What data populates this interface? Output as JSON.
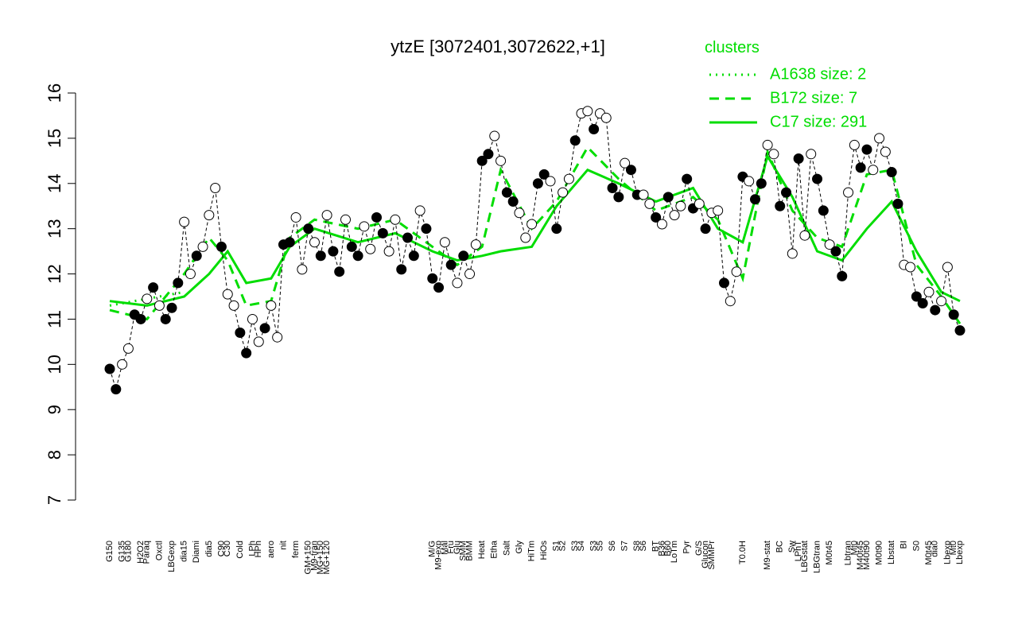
{
  "chart_data": {
    "type": "line",
    "title": "ytzE [3072401,3072622,+1]",
    "legend_title": "clusters",
    "categories": [
      "G150",
      null,
      "G135",
      "G180",
      null,
      "H2O2",
      "Paraq",
      null,
      "Oxctl",
      null,
      "LBGexp",
      null,
      "dia15",
      null,
      "Diami",
      null,
      "dia5",
      null,
      "C90",
      "C30",
      null,
      "Cold",
      null,
      "LPh",
      "HPh",
      null,
      "aero",
      null,
      "nit",
      null,
      "ferm",
      null,
      "GM+150",
      "M9-tran",
      "MG+150",
      "MG+120",
      null,
      null,
      null,
      null,
      null,
      null,
      null,
      null,
      null,
      null,
      null,
      null,
      null,
      null,
      null,
      null,
      "M/G",
      "M9-exp",
      "Mal",
      "Fru",
      "Glu",
      "SMM",
      "BMM",
      null,
      "Heat",
      null,
      "Etha",
      null,
      "Salt",
      null,
      "Gly",
      null,
      "HiTm",
      null,
      "HiOs",
      null,
      "S1",
      "S2",
      null,
      "S3",
      "S4",
      null,
      "S3",
      "S5",
      null,
      "S6",
      null,
      "S7",
      null,
      "S8",
      "S6",
      null,
      "BT",
      "B36",
      "B60",
      "LoTm",
      null,
      "Pyr",
      null,
      "G/S",
      "Glucon",
      "SMMPr",
      null,
      null,
      null,
      null,
      "T0.0H",
      null,
      null,
      null,
      "M9-stat",
      null,
      "BC",
      null,
      "Sw",
      "LPhT",
      "LBGstat",
      null,
      "LBGtran",
      null,
      "M0t45",
      null,
      null,
      "Lbtran",
      "Mt0",
      "M40t45",
      "M40t90",
      null,
      "M0t90",
      null,
      "Lbstat",
      null,
      "BI",
      null,
      "S0",
      null,
      "M0t45",
      "dia0",
      null,
      "Lbexp",
      "Mt0",
      "Lbexp"
    ],
    "values": [
      9.9,
      9.45,
      10.0,
      10.35,
      11.1,
      11.0,
      11.45,
      11.7,
      11.3,
      11.0,
      11.25,
      11.8,
      13.15,
      12.0,
      12.4,
      12.6,
      13.3,
      13.9,
      12.6,
      11.55,
      11.3,
      10.7,
      10.25,
      11.0,
      10.5,
      10.8,
      11.3,
      10.6,
      12.65,
      12.7,
      13.25,
      12.1,
      13.0,
      12.7,
      12.4,
      13.3,
      12.5,
      12.05,
      13.2,
      12.6,
      12.4,
      13.05,
      12.55,
      13.25,
      12.9,
      12.5,
      13.2,
      12.1,
      12.8,
      12.4,
      13.4,
      13.0,
      11.9,
      11.7,
      12.7,
      12.2,
      11.8,
      12.4,
      12.0,
      12.65,
      14.5,
      14.65,
      15.05,
      14.5,
      13.8,
      13.6,
      13.35,
      12.8,
      13.1,
      14.0,
      14.2,
      14.05,
      13.0,
      13.8,
      14.1,
      14.95,
      15.55,
      15.6,
      15.2,
      15.55,
      15.45,
      13.9,
      13.7,
      14.45,
      14.3,
      13.75,
      13.75,
      13.55,
      13.25,
      13.1,
      13.7,
      13.3,
      13.5,
      14.1,
      13.45,
      13.55,
      13.0,
      13.35,
      13.4,
      11.8,
      11.4,
      12.05,
      14.15,
      14.05,
      13.65,
      14.0,
      14.85,
      14.65,
      13.5,
      13.8,
      12.45,
      14.55,
      12.85,
      14.65,
      14.1,
      13.4,
      12.65,
      12.5,
      11.95,
      13.8,
      14.85,
      14.35,
      14.75,
      14.3,
      15.0,
      14.7,
      14.25,
      13.55,
      12.2,
      12.15,
      11.5,
      11.35,
      11.6,
      11.2,
      11.4,
      12.15,
      11.1,
      10.75
    ],
    "filled": [
      1,
      1,
      0,
      0,
      1,
      1,
      0,
      1,
      0,
      1,
      1,
      1,
      0,
      0,
      1,
      0,
      0,
      0,
      1,
      0,
      0,
      1,
      1,
      0,
      0,
      1,
      0,
      0,
      1,
      1,
      0,
      0,
      1,
      0,
      1,
      0,
      1,
      1,
      0,
      1,
      1,
      0,
      0,
      1,
      1,
      0,
      0,
      1,
      1,
      1,
      0,
      1,
      1,
      1,
      0,
      1,
      0,
      1,
      0,
      0,
      1,
      1,
      0,
      0,
      1,
      1,
      0,
      0,
      0,
      1,
      1,
      0,
      1,
      0,
      0,
      1,
      0,
      0,
      1,
      0,
      0,
      1,
      1,
      0,
      1,
      1,
      0,
      0,
      1,
      0,
      1,
      0,
      0,
      1,
      1,
      0,
      1,
      0,
      0,
      1,
      0,
      0,
      1,
      0,
      1,
      1,
      0,
      0,
      1,
      1,
      0,
      1,
      0,
      0,
      1,
      1,
      0,
      1,
      1,
      0,
      0,
      1,
      1,
      0,
      0,
      0,
      1,
      1,
      0,
      0,
      1,
      1,
      0,
      1,
      0,
      0,
      1,
      1
    ],
    "ylim": [
      7,
      16
    ],
    "yticks": [
      7,
      8,
      9,
      10,
      11,
      12,
      13,
      14,
      15,
      16
    ],
    "series": [
      {
        "name": "A1638 size: 2",
        "color": "#00dd00",
        "style": "dotted",
        "x": [
          0,
          12
        ],
        "values": [
          11.3,
          11.6
        ]
      },
      {
        "name": "B172 size: 7",
        "color": "#00dd00",
        "style": "dashed",
        "x": [
          0,
          6,
          12,
          16,
          19,
          22,
          26,
          29,
          33,
          40,
          46,
          52,
          56,
          60,
          63,
          68,
          72,
          77,
          82,
          88,
          94,
          98,
          102,
          106,
          110,
          114,
          118,
          122,
          126,
          130,
          134,
          137
        ],
        "values": [
          11.2,
          11.0,
          12.0,
          12.8,
          12.3,
          11.3,
          11.4,
          12.8,
          13.2,
          13.0,
          13.2,
          12.6,
          12.2,
          12.6,
          14.3,
          13.0,
          13.6,
          14.8,
          14.1,
          13.4,
          13.7,
          13.2,
          11.9,
          14.7,
          13.4,
          12.8,
          12.6,
          14.2,
          14.3,
          12.2,
          11.5,
          10.9
        ]
      },
      {
        "name": "C17 size: 291",
        "color": "#00dd00",
        "style": "solid",
        "x": [
          0,
          6,
          12,
          16,
          19,
          22,
          26,
          29,
          33,
          40,
          46,
          52,
          56,
          60,
          63,
          68,
          72,
          77,
          82,
          88,
          94,
          98,
          102,
          106,
          110,
          114,
          118,
          122,
          126,
          130,
          134,
          137
        ],
        "values": [
          11.4,
          11.3,
          11.5,
          12.0,
          12.5,
          11.8,
          11.9,
          12.6,
          13.0,
          12.7,
          12.9,
          12.5,
          12.3,
          12.4,
          12.5,
          12.6,
          13.5,
          14.3,
          14.0,
          13.6,
          13.9,
          13.0,
          12.7,
          14.6,
          13.7,
          12.5,
          12.3,
          13.0,
          13.6,
          12.5,
          11.6,
          11.4
        ]
      }
    ]
  }
}
